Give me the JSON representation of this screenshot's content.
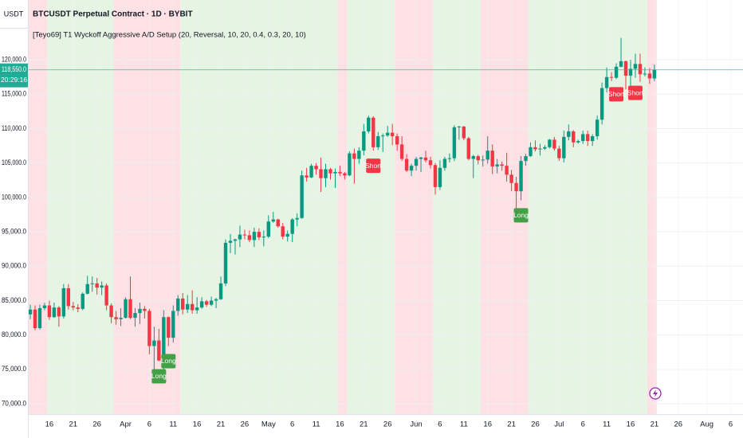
{
  "chart_data": {
    "type": "candlestick",
    "currency": "USDT",
    "title": "BTCUSDT Perpetual Contract · 1D · BYBIT",
    "indicator": "[Teyo69] T1 Wyckoff Aggressive A/D Setup (20, Reversal, 10, 20, 0.4, 0.3, 20, 10)",
    "up_color": "#089981",
    "down_color": "#f23645",
    "grid": true,
    "ylim": [
      68500,
      128700
    ],
    "yticks": [
      {
        "value": 70000,
        "label": "70,000.0"
      },
      {
        "value": 75000,
        "label": "75,000.0"
      },
      {
        "value": 80000,
        "label": "80,000.0"
      },
      {
        "value": 85000,
        "label": "85,000.0"
      },
      {
        "value": 90000,
        "label": "90,000.0"
      },
      {
        "value": 95000,
        "label": "95,000.0"
      },
      {
        "value": 100000,
        "label": "100,000.0"
      },
      {
        "value": 105000,
        "label": "105,000.0"
      },
      {
        "value": 110000,
        "label": "110,000.0"
      },
      {
        "value": 115000,
        "label": "115,000.0"
      },
      {
        "value": 120000,
        "label": "120,000.0"
      }
    ],
    "xticks": [
      {
        "value": "Mar 16",
        "label": "16"
      },
      {
        "value": "Mar 21",
        "label": "21"
      },
      {
        "value": "Mar 26",
        "label": "26"
      },
      {
        "value": "Apr 1",
        "label": "Apr"
      },
      {
        "value": "Apr 6",
        "label": "6"
      },
      {
        "value": "Apr 11",
        "label": "11"
      },
      {
        "value": "Apr 16",
        "label": "16"
      },
      {
        "value": "Apr 21",
        "label": "21"
      },
      {
        "value": "Apr 26",
        "label": "26"
      },
      {
        "value": "May 1",
        "label": "May"
      },
      {
        "value": "May 6",
        "label": "6"
      },
      {
        "value": "May 11",
        "label": "11"
      },
      {
        "value": "May 16",
        "label": "16"
      },
      {
        "value": "May 21",
        "label": "21"
      },
      {
        "value": "May 26",
        "label": "26"
      },
      {
        "value": "Jun 1",
        "label": "Jun"
      },
      {
        "value": "Jun 6",
        "label": "6"
      },
      {
        "value": "Jun 11",
        "label": "11"
      },
      {
        "value": "Jun 16",
        "label": "16"
      },
      {
        "value": "Jun 21",
        "label": "21"
      },
      {
        "value": "Jun 26",
        "label": "26"
      },
      {
        "value": "Jul 1",
        "label": "Jul"
      },
      {
        "value": "Jul 6",
        "label": "6"
      },
      {
        "value": "Jul 11",
        "label": "11"
      },
      {
        "value": "Jul 16",
        "label": "16"
      },
      {
        "value": "Jul 21",
        "label": "21"
      },
      {
        "value": "Jul 26",
        "label": "26"
      },
      {
        "value": "Aug 1",
        "label": "Aug"
      },
      {
        "value": "Aug 6",
        "label": "6"
      }
    ],
    "last_price": {
      "value": 118550,
      "label": "118,550.0",
      "color": "#22ab94"
    },
    "countdown": "20:29:16",
    "zones": [
      {
        "from": "Mar 12",
        "to": "Mar 15",
        "color": "#fde1e4"
      },
      {
        "from": "Mar 16",
        "to": "Mar 29",
        "color": "#e6f4e4"
      },
      {
        "from": "Mar 30",
        "to": "Apr 12",
        "color": "#fde1e4"
      },
      {
        "from": "Apr 13",
        "to": "May 15",
        "color": "#e6f4e4"
      },
      {
        "from": "May 16",
        "to": "May 17",
        "color": "#fde1e4"
      },
      {
        "from": "May 18",
        "to": "May 27",
        "color": "#e6f4e4"
      },
      {
        "from": "May 28",
        "to": "Jun 4",
        "color": "#fde1e4"
      },
      {
        "from": "Jun 5",
        "to": "Jun 14",
        "color": "#e6f4e4"
      },
      {
        "from": "Jun 15",
        "to": "Jun 24",
        "color": "#fde1e4"
      },
      {
        "from": "Jun 25",
        "to": "Jul 19",
        "color": "#e6f4e4"
      },
      {
        "from": "Jul 20",
        "to": "Jul 21",
        "color": "#fde1e4"
      }
    ],
    "signals": [
      {
        "date": "Apr 8",
        "text": "Long",
        "color": "#43a047"
      },
      {
        "date": "Apr 10",
        "text": "Long",
        "color": "#43a047"
      },
      {
        "date": "May 23",
        "text": "Short",
        "color": "#f23645"
      },
      {
        "date": "Jun 23",
        "text": "Long",
        "color": "#43a047"
      },
      {
        "date": "Jul 13",
        "text": "Short",
        "color": "#f23645"
      },
      {
        "date": "Jul 17",
        "text": "Short",
        "color": "#f23645"
      }
    ],
    "candles": {
      "dates": [
        "Mar 12",
        "Mar 13",
        "Mar 14",
        "Mar 15",
        "Mar 16",
        "Mar 17",
        "Mar 18",
        "Mar 19",
        "Mar 20",
        "Mar 21",
        "Mar 22",
        "Mar 23",
        "Mar 24",
        "Mar 25",
        "Mar 26",
        "Mar 27",
        "Mar 28",
        "Mar 29",
        "Mar 30",
        "Mar 31",
        "Apr 1",
        "Apr 2",
        "Apr 3",
        "Apr 4",
        "Apr 5",
        "Apr 6",
        "Apr 7",
        "Apr 8",
        "Apr 9",
        "Apr 10",
        "Apr 11",
        "Apr 12",
        "Apr 13",
        "Apr 14",
        "Apr 15",
        "Apr 16",
        "Apr 17",
        "Apr 18",
        "Apr 19",
        "Apr 20",
        "Apr 21",
        "Apr 22",
        "Apr 23",
        "Apr 24",
        "Apr 25",
        "Apr 26",
        "Apr 27",
        "Apr 28",
        "Apr 29",
        "Apr 30",
        "May 1",
        "May 2",
        "May 3",
        "May 4",
        "May 5",
        "May 6",
        "May 7",
        "May 8",
        "May 9",
        "May 10",
        "May 11",
        "May 12",
        "May 13",
        "May 14",
        "May 15",
        "May 16",
        "May 17",
        "May 18",
        "May 19",
        "May 20",
        "May 21",
        "May 22",
        "May 23",
        "May 24",
        "May 25",
        "May 26",
        "May 27",
        "May 28",
        "May 29",
        "May 30",
        "May 31",
        "Jun 1",
        "Jun 2",
        "Jun 3",
        "Jun 4",
        "Jun 5",
        "Jun 6",
        "Jun 7",
        "Jun 8",
        "Jun 9",
        "Jun 10",
        "Jun 11",
        "Jun 12",
        "Jun 13",
        "Jun 14",
        "Jun 15",
        "Jun 16",
        "Jun 17",
        "Jun 18",
        "Jun 19",
        "Jun 20",
        "Jun 21",
        "Jun 22",
        "Jun 23",
        "Jun 24",
        "Jun 25",
        "Jun 26",
        "Jun 27",
        "Jun 28",
        "Jun 29",
        "Jun 30",
        "Jul 1",
        "Jul 2",
        "Jul 3",
        "Jul 4",
        "Jul 5",
        "Jul 6",
        "Jul 7",
        "Jul 8",
        "Jul 9",
        "Jul 10",
        "Jul 11",
        "Jul 12",
        "Jul 13",
        "Jul 14",
        "Jul 15",
        "Jul 16",
        "Jul 17",
        "Jul 18",
        "Jul 19",
        "Jul 20",
        "Jul 21"
      ],
      "ohlc": [
        [
          83000,
          84400,
          82300,
          83700
        ],
        [
          83700,
          84300,
          80700,
          81000
        ],
        [
          81000,
          84400,
          80800,
          83900
        ],
        [
          83900,
          84700,
          83600,
          84300
        ],
        [
          84300,
          85000,
          82200,
          82600
        ],
        [
          82600,
          84700,
          82500,
          84000
        ],
        [
          84000,
          84200,
          81200,
          82700
        ],
        [
          82700,
          87400,
          82400,
          86800
        ],
        [
          86800,
          87400,
          83700,
          84200
        ],
        [
          84200,
          84800,
          83600,
          84000
        ],
        [
          84000,
          84500,
          83300,
          83800
        ],
        [
          83800,
          86200,
          83600,
          86000
        ],
        [
          86000,
          88600,
          85900,
          87400
        ],
        [
          87400,
          88500,
          86300,
          87500
        ],
        [
          87500,
          88300,
          85900,
          86900
        ],
        [
          86900,
          87800,
          85800,
          87200
        ],
        [
          87200,
          87500,
          83600,
          84300
        ],
        [
          84300,
          84600,
          81700,
          82600
        ],
        [
          82600,
          83500,
          81500,
          82300
        ],
        [
          82300,
          83900,
          81300,
          82500
        ],
        [
          82500,
          85500,
          82400,
          85200
        ],
        [
          85200,
          88500,
          82300,
          82500
        ],
        [
          82500,
          83900,
          81200,
          83200
        ],
        [
          83200,
          84700,
          81600,
          83800
        ],
        [
          83800,
          84200,
          82400,
          83500
        ],
        [
          83500,
          83800,
          77200,
          78400
        ],
        [
          78400,
          81200,
          74500,
          79200
        ],
        [
          79200,
          80900,
          76200,
          76300
        ],
        [
          76300,
          83600,
          74600,
          82600
        ],
        [
          82600,
          82700,
          78400,
          79600
        ],
        [
          79600,
          84300,
          78900,
          83500
        ],
        [
          83500,
          85800,
          82800,
          85300
        ],
        [
          85300,
          86100,
          83000,
          83700
        ],
        [
          83700,
          85800,
          83200,
          84500
        ],
        [
          84500,
          86500,
          83100,
          83600
        ],
        [
          83600,
          85500,
          83100,
          84000
        ],
        [
          84000,
          85500,
          83800,
          84900
        ],
        [
          84900,
          85100,
          84100,
          84400
        ],
        [
          84400,
          85600,
          84200,
          85000
        ],
        [
          85000,
          85400,
          83900,
          85200
        ],
        [
          85200,
          88500,
          85100,
          87500
        ],
        [
          87500,
          93900,
          87100,
          93400
        ],
        [
          93400,
          94700,
          91900,
          93700
        ],
        [
          93700,
          94000,
          91700,
          93900
        ],
        [
          93900,
          95900,
          92800,
          94600
        ],
        [
          94600,
          95300,
          93900,
          94500
        ],
        [
          94500,
          95200,
          93500,
          93800
        ],
        [
          93800,
          95600,
          92800,
          95000
        ],
        [
          95000,
          95500,
          93800,
          94200
        ],
        [
          94200,
          95200,
          92900,
          94300
        ],
        [
          94300,
          97400,
          94100,
          96500
        ],
        [
          96500,
          97900,
          96300,
          96800
        ],
        [
          96800,
          96900,
          95600,
          95800
        ],
        [
          95800,
          96300,
          93900,
          94300
        ],
        [
          94300,
          95200,
          93600,
          94700
        ],
        [
          94700,
          97000,
          93500,
          96800
        ],
        [
          96800,
          97700,
          95800,
          97000
        ],
        [
          97000,
          103900,
          96900,
          103200
        ],
        [
          103200,
          104300,
          102300,
          102900
        ],
        [
          102900,
          104900,
          102800,
          104600
        ],
        [
          104600,
          105000,
          103300,
          104100
        ],
        [
          104100,
          105800,
          100800,
          102800
        ],
        [
          102800,
          104900,
          101500,
          104100
        ],
        [
          104100,
          104300,
          102600,
          103500
        ],
        [
          103500,
          104200,
          101400,
          103700
        ],
        [
          103700,
          104600,
          103100,
          103500
        ],
        [
          103500,
          103700,
          102600,
          103200
        ],
        [
          103200,
          106700,
          103100,
          106400
        ],
        [
          106400,
          107100,
          102000,
          105600
        ],
        [
          105600,
          107300,
          104900,
          106800
        ],
        [
          106800,
          110700,
          106100,
          109600
        ],
        [
          109600,
          111900,
          109300,
          111600
        ],
        [
          111600,
          111800,
          106800,
          107300
        ],
        [
          107300,
          109500,
          106900,
          108900
        ],
        [
          108900,
          109300,
          106600,
          109000
        ],
        [
          109000,
          110400,
          108800,
          109400
        ],
        [
          109400,
          110700,
          107600,
          108900
        ],
        [
          108900,
          109300,
          106800,
          107700
        ],
        [
          107700,
          108900,
          105300,
          105600
        ],
        [
          105600,
          106300,
          103700,
          103900
        ],
        [
          103900,
          104900,
          103100,
          104600
        ],
        [
          104600,
          105900,
          103900,
          105600
        ],
        [
          105600,
          105900,
          103700,
          105800
        ],
        [
          105800,
          106800,
          105100,
          105400
        ],
        [
          105400,
          105900,
          104200,
          104700
        ],
        [
          104700,
          105000,
          100400,
          101500
        ],
        [
          101500,
          105400,
          101100,
          104300
        ],
        [
          104300,
          105900,
          103900,
          105600
        ],
        [
          105600,
          106400,
          105100,
          105700
        ],
        [
          105700,
          110500,
          105300,
          110200
        ],
        [
          110200,
          110400,
          108400,
          110300
        ],
        [
          110300,
          110400,
          108300,
          108600
        ],
        [
          108600,
          108800,
          105400,
          105600
        ],
        [
          105600,
          106200,
          102800,
          106000
        ],
        [
          106000,
          106200,
          104800,
          105400
        ],
        [
          105400,
          106100,
          104500,
          105500
        ],
        [
          105500,
          108900,
          104900,
          106800
        ],
        [
          106800,
          107700,
          103400,
          104500
        ],
        [
          104500,
          105600,
          103500,
          104800
        ],
        [
          104800,
          105200,
          103900,
          104600
        ],
        [
          104600,
          106500,
          102300,
          103300
        ],
        [
          103300,
          104000,
          100900,
          102100
        ],
        [
          102100,
          103000,
          98200,
          100900
        ],
        [
          100900,
          106000,
          99600,
          105300
        ],
        [
          105300,
          106300,
          104600,
          106000
        ],
        [
          106000,
          108000,
          105900,
          107300
        ],
        [
          107300,
          108300,
          106700,
          107000
        ],
        [
          107000,
          107800,
          106100,
          107100
        ],
        [
          107100,
          107600,
          106900,
          107300
        ],
        [
          107300,
          108500,
          107100,
          108400
        ],
        [
          108400,
          108800,
          106800,
          107100
        ],
        [
          107100,
          107500,
          105300,
          105700
        ],
        [
          105700,
          109700,
          105100,
          108800
        ],
        [
          108800,
          110600,
          108300,
          109600
        ],
        [
          109600,
          109800,
          107300,
          108000
        ],
        [
          108000,
          108400,
          107800,
          108200
        ],
        [
          108200,
          109700,
          107800,
          109200
        ],
        [
          109200,
          109700,
          107500,
          108200
        ],
        [
          108200,
          109200,
          107500,
          108900
        ],
        [
          108900,
          111900,
          108400,
          111300
        ],
        [
          111300,
          116700,
          110600,
          115900
        ],
        [
          115900,
          118900,
          115300,
          117500
        ],
        [
          117500,
          118200,
          116900,
          117400
        ],
        [
          117400,
          119500,
          117200,
          119000
        ],
        [
          119000,
          123200,
          118900,
          119800
        ],
        [
          119800,
          119900,
          115700,
          117700
        ],
        [
          117700,
          120000,
          116000,
          118700
        ],
        [
          118700,
          120900,
          117400,
          119400
        ],
        [
          119400,
          120900,
          116800,
          117900
        ],
        [
          117900,
          118900,
          117600,
          118000
        ],
        [
          118000,
          118800,
          116500,
          117300
        ],
        [
          117300,
          119300,
          116900,
          118550
        ]
      ]
    }
  }
}
